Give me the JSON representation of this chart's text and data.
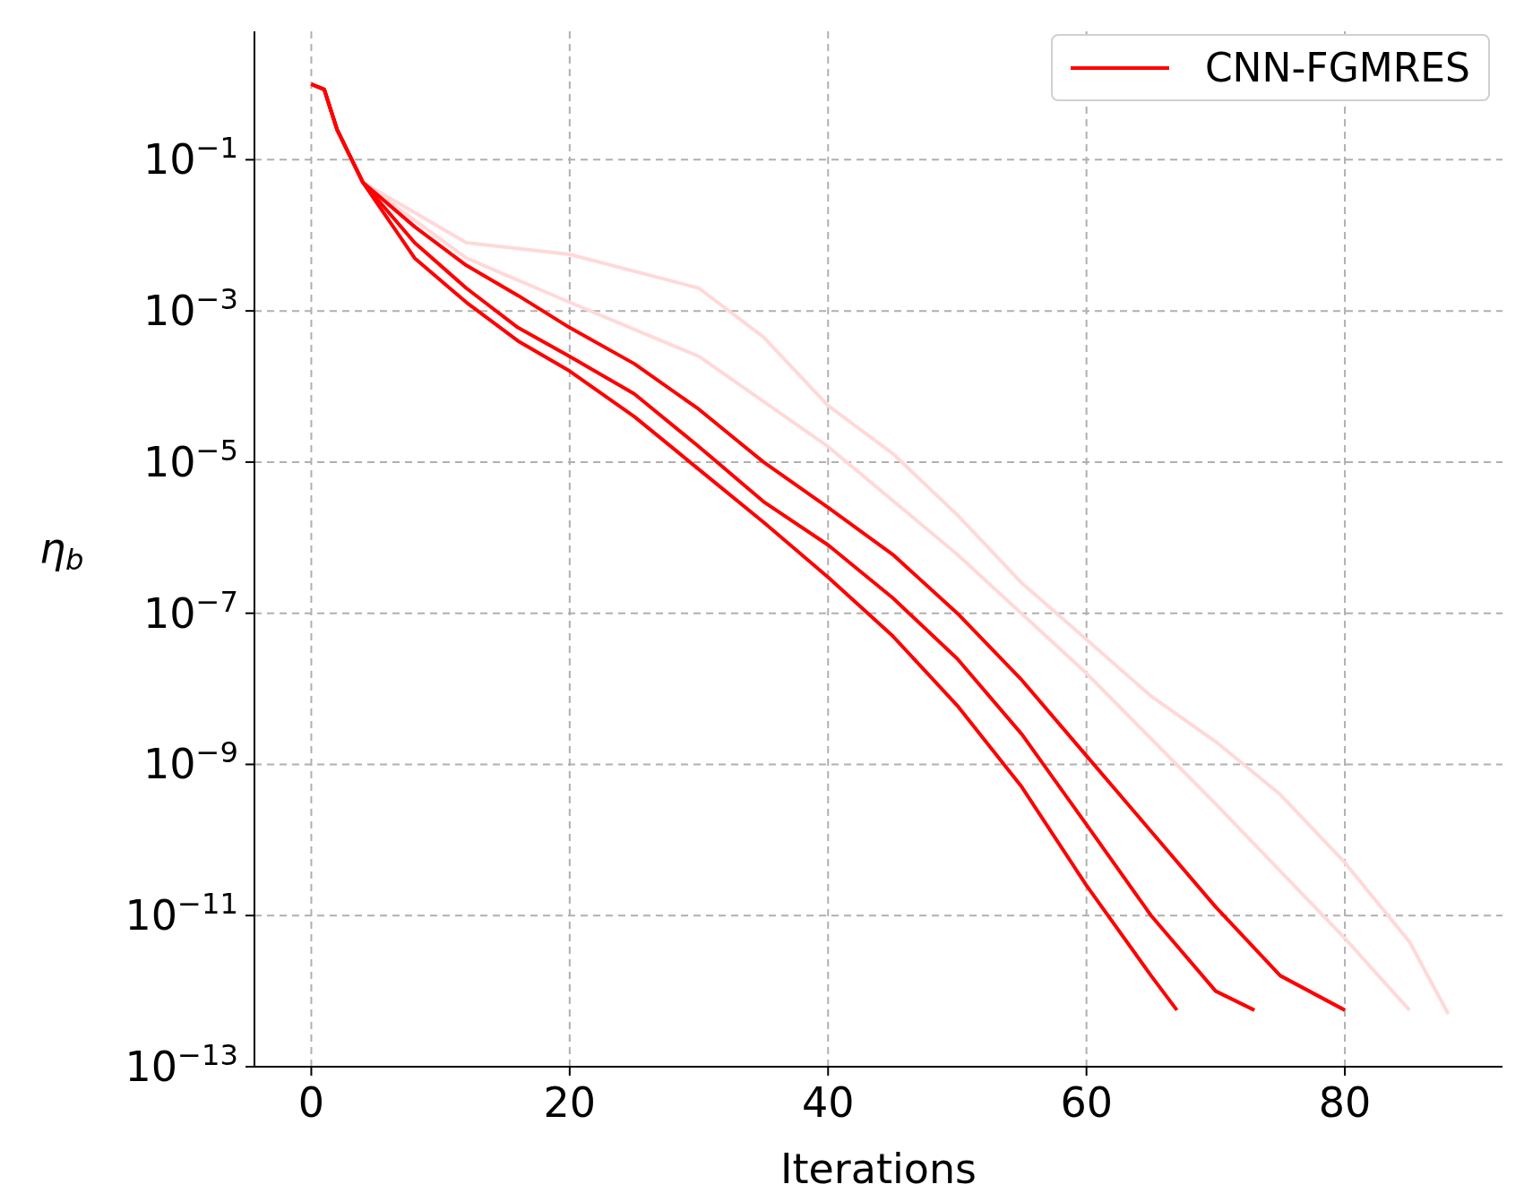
{
  "chart_data": {
    "type": "line",
    "xlabel": "Iterations",
    "ylabel": "η$_{b}$",
    "log": "y",
    "grid": true,
    "legend": "top right",
    "line_style": "solid",
    "marker": "none",
    "xlim": [
      -4.4,
      92.2
    ],
    "xticks": [
      0,
      20,
      40,
      60,
      80
    ],
    "ylim": [
      1e-13,
      5
    ],
    "yticks": [
      {
        "value": 0.1,
        "label": "10$^{−1}$"
      },
      {
        "value": 0.001,
        "label": "10$^{−3}$"
      },
      {
        "value": 1e-05,
        "label": "10$^{−5}$"
      },
      {
        "value": 1e-07,
        "label": "10$^{−7}$"
      },
      {
        "value": 1e-09,
        "label": "10$^{−9}$"
      },
      {
        "value": 1e-11,
        "label": "10$^{−11}$"
      },
      {
        "value": 1e-13,
        "label": "10$^{−13}$"
      }
    ],
    "series": [
      {
        "color": "#ffd9d9",
        "x": [
          0,
          1,
          2,
          4,
          12,
          20,
          30,
          35,
          40,
          45,
          50,
          55,
          60,
          65,
          70,
          75,
          80,
          85,
          88
        ],
        "values": [
          1,
          0.85,
          0.25,
          0.05,
          0.008,
          0.0056,
          0.002,
          0.00045,
          5.6e-05,
          1.3e-05,
          2e-06,
          2.5e-07,
          4.5e-08,
          8e-09,
          2e-09,
          4e-10,
          5e-11,
          4.5e-12,
          5e-13
        ]
      },
      {
        "color": "#ffd9d9",
        "x": [
          0,
          1,
          2,
          4,
          12,
          20,
          30,
          40,
          50,
          60,
          70,
          80,
          85
        ],
        "values": [
          1,
          0.85,
          0.25,
          0.05,
          0.005,
          0.0013,
          0.00025,
          1.6e-05,
          6e-07,
          1.6e-08,
          3e-10,
          5e-12,
          5.6e-13
        ]
      },
      {
        "color": "#ff0000",
        "x": [
          0,
          1,
          2,
          4,
          8,
          12,
          16,
          20,
          25,
          30,
          35,
          40,
          45,
          50,
          55,
          60,
          65,
          70,
          75,
          80
        ],
        "values": [
          1,
          0.85,
          0.25,
          0.05,
          0.013,
          0.004,
          0.0016,
          0.0006,
          0.0002,
          5e-05,
          1e-05,
          2.5e-06,
          6e-07,
          1e-07,
          1.3e-08,
          1.3e-09,
          1.3e-10,
          1.3e-11,
          1.6e-12,
          5.6e-13
        ]
      },
      {
        "color": "#ff0000",
        "x": [
          0,
          1,
          2,
          4,
          8,
          12,
          16,
          20,
          25,
          30,
          35,
          40,
          45,
          50,
          55,
          60,
          65,
          67
        ],
        "values": [
          1,
          0.85,
          0.25,
          0.05,
          0.005,
          0.0013,
          0.0004,
          0.00016,
          4e-05,
          8e-06,
          1.6e-06,
          3e-07,
          5e-08,
          6e-09,
          5e-10,
          2.5e-11,
          1.6e-12,
          5.6e-13
        ]
      },
      {
        "name": "CNN-FGMRES",
        "color": "#ff0000",
        "x": [
          0,
          1,
          2,
          4,
          8,
          12,
          16,
          20,
          25,
          30,
          35,
          40,
          45,
          50,
          55,
          60,
          65,
          70,
          73
        ],
        "values": [
          1,
          0.85,
          0.25,
          0.05,
          0.008,
          0.002,
          0.0006,
          0.00025,
          8e-05,
          1.6e-05,
          3e-06,
          8e-07,
          1.6e-07,
          2.5e-08,
          2.5e-09,
          1.6e-10,
          1e-11,
          1e-12,
          5.6e-13
        ]
      }
    ]
  }
}
